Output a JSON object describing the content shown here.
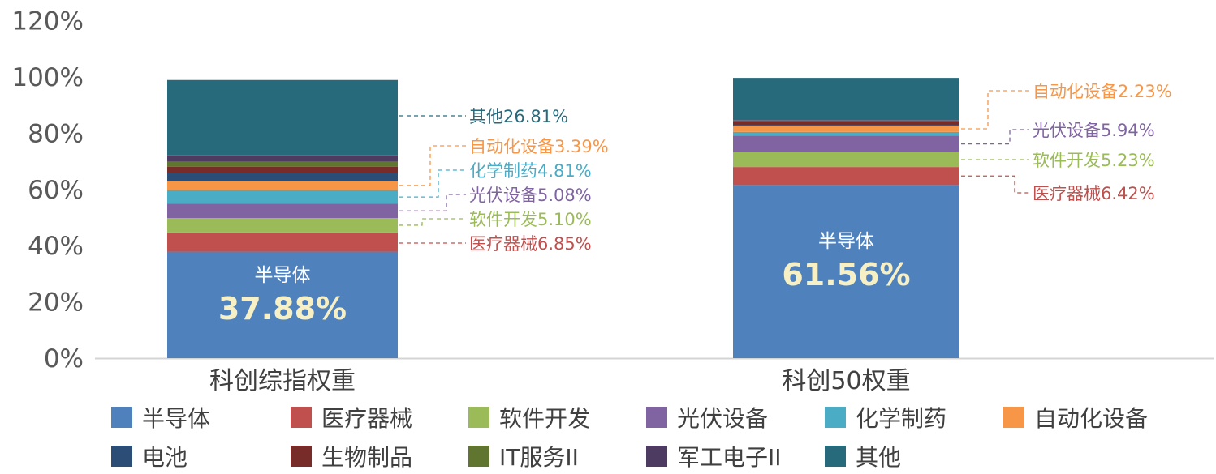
{
  "chart_data": {
    "type": "bar",
    "stacked": true,
    "categories": [
      "科创综指权重",
      "科创50权重"
    ],
    "ylim": [
      0,
      120
    ],
    "ytick_values": [
      0,
      20,
      40,
      60,
      80,
      100,
      120
    ],
    "ytick_labels": [
      "0%",
      "20%",
      "40%",
      "60%",
      "80%",
      "100%",
      "120%"
    ],
    "grid": false,
    "legend_position": "bottom",
    "series": [
      {
        "name": "半导体",
        "color": "#4f81bd",
        "values": [
          37.88,
          61.56
        ]
      },
      {
        "name": "医疗器械",
        "color": "#c0504d",
        "values": [
          6.85,
          6.42
        ]
      },
      {
        "name": "软件开发",
        "color": "#9bbb59",
        "values": [
          5.1,
          5.23
        ]
      },
      {
        "name": "光伏设备",
        "color": "#8064a2",
        "values": [
          5.08,
          5.94
        ]
      },
      {
        "name": "化学制药",
        "color": "#4bacc6",
        "values": [
          4.81,
          1.3
        ]
      },
      {
        "name": "自动化设备",
        "color": "#f79646",
        "values": [
          3.39,
          2.23
        ]
      },
      {
        "name": "电池",
        "color": "#2c4d75",
        "values": [
          2.6,
          0.2
        ]
      },
      {
        "name": "生物制品",
        "color": "#772c2a",
        "values": [
          2.4,
          1.4
        ]
      },
      {
        "name": "IT服务II",
        "color": "#5f7530",
        "values": [
          1.8,
          0.2
        ]
      },
      {
        "name": "军工电子II",
        "color": "#4d3b62",
        "values": [
          2.2,
          0.2
        ]
      },
      {
        "name": "其他",
        "color": "#276a7c",
        "values": [
          26.81,
          15.0
        ]
      }
    ],
    "main_labels": [
      {
        "name": "半导体",
        "value": "37.88%"
      },
      {
        "name": "半导体",
        "value": "61.56%"
      }
    ],
    "annotations": [
      [
        {
          "series": 10,
          "text": "其他26.81%"
        },
        {
          "series": 5,
          "text": "自动化设备3.39%"
        },
        {
          "series": 4,
          "text": "化学制药4.81%"
        },
        {
          "series": 3,
          "text": "光伏设备5.08%"
        },
        {
          "series": 2,
          "text": "软件开发5.10%"
        },
        {
          "series": 1,
          "text": "医疗器械6.85%"
        }
      ],
      [
        {
          "series": 5,
          "text": "自动化设备2.23%"
        },
        {
          "series": 3,
          "text": "光伏设备5.94%"
        },
        {
          "series": 2,
          "text": "软件开发5.23%"
        },
        {
          "series": 1,
          "text": "医疗器械6.42%"
        }
      ]
    ]
  }
}
